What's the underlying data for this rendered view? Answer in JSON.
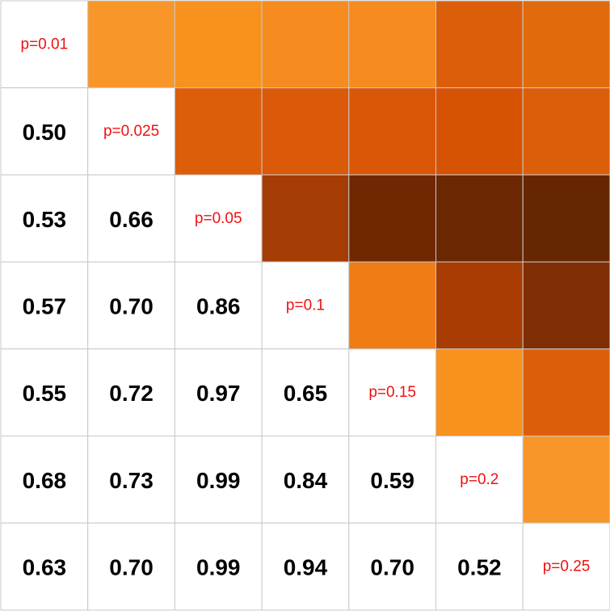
{
  "chart_data": {
    "type": "heatmap",
    "title": "",
    "xlabel": "",
    "ylabel": "",
    "legend": "none",
    "grid": true,
    "diagonal_labels": [
      "p=0.01",
      "p=0.025",
      "p=0.05",
      "p=0.1",
      "p=0.15",
      "p=0.2",
      "p=0.25"
    ],
    "lower_values": [
      [
        null,
        null,
        null,
        null,
        null,
        null,
        null
      ],
      [
        "0.50",
        null,
        null,
        null,
        null,
        null,
        null
      ],
      [
        "0.53",
        "0.66",
        null,
        null,
        null,
        null,
        null
      ],
      [
        "0.57",
        "0.70",
        "0.86",
        null,
        null,
        null,
        null
      ],
      [
        "0.55",
        "0.72",
        "0.97",
        "0.65",
        null,
        null,
        null
      ],
      [
        "0.68",
        "0.73",
        "0.99",
        "0.84",
        "0.59",
        null,
        null
      ],
      [
        "0.63",
        "0.70",
        "0.99",
        "0.94",
        "0.70",
        "0.52",
        null
      ]
    ],
    "upper_colors": [
      [
        null,
        "#f9962a",
        "#f7921f",
        "#f68b1f",
        "#f68b1f",
        "#dc5e0b",
        "#e16a0d"
      ],
      [
        null,
        null,
        "#dc5e0b",
        "#da5a09",
        "#d95707",
        "#d65304",
        "#dc5e0b"
      ],
      [
        null,
        null,
        null,
        "#a43c03",
        "#6e2903",
        "#6a2702",
        "#672602"
      ],
      [
        null,
        null,
        null,
        null,
        "#f07c15",
        "#a83c02",
        "#7f2d03"
      ],
      [
        null,
        null,
        null,
        null,
        null,
        "#f7921f",
        "#dc5e0b"
      ],
      [
        null,
        null,
        null,
        null,
        null,
        null,
        "#f9962a"
      ],
      [
        null,
        null,
        null,
        null,
        null,
        null,
        null
      ]
    ],
    "colors": {
      "grid": "#c8c8c8",
      "value_text": "#000000",
      "diagonal_text": "#ee1111"
    }
  }
}
